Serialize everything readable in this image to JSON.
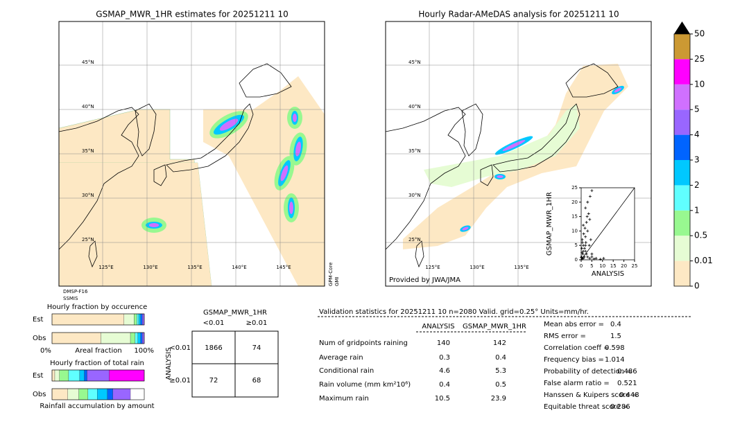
{
  "maps": [
    {
      "title": "GSMAP_MWR_1HR estimates for 20251211 10",
      "lat_labels": [
        "45°N",
        "40°N",
        "35°N",
        "30°N",
        "25°N"
      ],
      "lon_labels": [
        "125°E",
        "130°E",
        "135°E",
        "140°E",
        "145°E"
      ],
      "side_labels": [
        "GPM-Core",
        "GMI"
      ],
      "bottom_labels": [
        "DMSP-F16",
        "SSMIS"
      ]
    },
    {
      "title": "Hourly Radar-AMeDAS analysis for 20251211 10",
      "lat_labels": [
        "45°N",
        "40°N",
        "35°N",
        "30°N",
        "25°N"
      ],
      "lon_labels": [
        "125°E",
        "130°E",
        "135°E"
      ],
      "credit": "Provided by JWA/JMA"
    }
  ],
  "colorbar": {
    "ticks": [
      0,
      0.01,
      0.5,
      1,
      2,
      3,
      4,
      5,
      10,
      25,
      50
    ],
    "colors": [
      "#fde8c4",
      "#e6fcd4",
      "#98f890",
      "#60ffff",
      "#00c8ff",
      "#0064ff",
      "#9966ff",
      "#d070ff",
      "#ff00ff",
      "#cc9933"
    ],
    "extend_color": "#000000"
  },
  "scatter": {
    "type": "scatter",
    "xlabel": "ANALYSIS",
    "ylabel": "GSMAP_MWR_1HR",
    "xlim": [
      0,
      25
    ],
    "ylim": [
      0,
      25
    ],
    "xticks": [
      0,
      5,
      10,
      15,
      20,
      25
    ],
    "yticks": [
      0,
      5,
      10,
      15,
      20,
      25
    ],
    "x": [
      0.5,
      1,
      0.2,
      0.8,
      1.5,
      2,
      0.3,
      1,
      2.5,
      3,
      4,
      5,
      6,
      7,
      5,
      0.5,
      1.2,
      2,
      3,
      1,
      2.5,
      4,
      3.5,
      2,
      3,
      4.2,
      5,
      1,
      0.6,
      2,
      9,
      10.5,
      0.1,
      1.8,
      2.8,
      4.5,
      3.8,
      0.4,
      1.6,
      2.2
    ],
    "y": [
      0.3,
      0.5,
      1,
      2,
      1,
      3,
      4,
      5,
      2,
      1,
      0.5,
      1,
      0.3,
      0.5,
      2,
      7,
      9,
      8,
      10,
      12,
      13,
      14,
      16,
      18,
      20,
      22,
      24,
      3,
      6,
      5,
      0.2,
      0.5,
      0.8,
      11,
      15,
      7,
      5,
      2.5,
      4,
      6
    ]
  },
  "occurrence": {
    "title": "Hourly fraction by occurence",
    "rows": [
      "Est",
      "Obs"
    ],
    "axis_labels": [
      "0%",
      "Areal fraction",
      "100%"
    ],
    "segments": [
      [
        0.78,
        0.11,
        0.03,
        0.02,
        0.02,
        0.02,
        0.02
      ],
      [
        0.53,
        0.32,
        0.05,
        0.03,
        0.03,
        0.02,
        0.02
      ]
    ]
  },
  "total_rain": {
    "title": "Hourly fraction of total rain",
    "rows": [
      "Est",
      "Obs"
    ],
    "footer": "Rainfall accumulation by amount",
    "segments": [
      [
        0.03,
        0.05,
        0.1,
        0.12,
        0.05,
        0.03,
        0.24,
        0.38
      ],
      [
        0.17,
        0.12,
        0.1,
        0.1,
        0.11,
        0.06,
        0.19,
        0.0
      ]
    ]
  },
  "contingency": {
    "title": "GSMAP_MWR_1HR",
    "columns": [
      "<0.01",
      "≥0.01"
    ],
    "row_title": "ANALYSIS",
    "rows": [
      "<0.01",
      "≥0.01"
    ],
    "cells": [
      [
        1866,
        74
      ],
      [
        72,
        68
      ]
    ]
  },
  "validation": {
    "title": "Validation statistics for 20251211 10  n=2080 Valid. grid=0.25° Units=mm/hr.",
    "columns": [
      "ANALYSIS",
      "GSMAP_MWR_1HR"
    ],
    "rows": [
      [
        "Num of gridpoints raining",
        140,
        142
      ],
      [
        "Average rain",
        0.3,
        0.4
      ],
      [
        "Conditional rain",
        4.6,
        5.3
      ],
      [
        "Rain volume (mm km²10⁶)",
        0.4,
        0.5
      ],
      [
        "Maximum rain",
        10.5,
        23.9
      ]
    ],
    "scores": [
      [
        "Mean abs error =",
        0.4
      ],
      [
        "RMS error =",
        1.5
      ],
      [
        "Correlation coeff =",
        0.598
      ],
      [
        "Frequency bias =",
        1.014
      ],
      [
        "Probability of detection =",
        0.486
      ],
      [
        "False alarm ratio =",
        0.521
      ],
      [
        "Hanssen & Kuipers score =",
        0.448
      ],
      [
        "Equitable threat score =",
        0.286
      ]
    ]
  }
}
